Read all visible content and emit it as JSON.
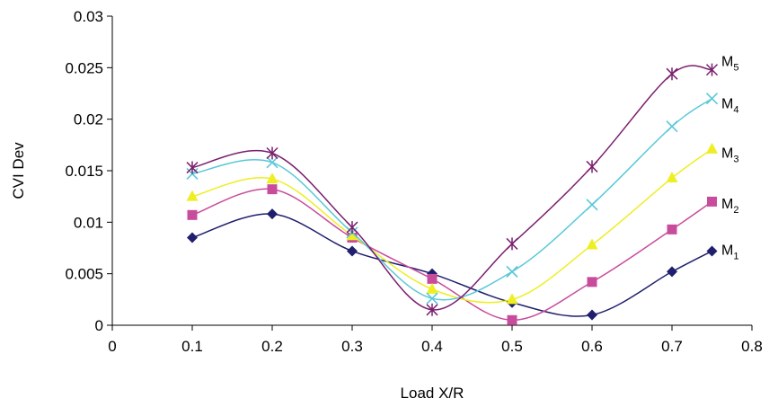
{
  "chart_data": {
    "type": "line",
    "title": "",
    "xlabel": "Load X/R",
    "ylabel": "CVI Dev",
    "xlim": [
      0,
      0.8
    ],
    "ylim": [
      0,
      0.03
    ],
    "x_ticks": [
      "0",
      "0.1",
      "0.2",
      "0.3",
      "0.4",
      "0.5",
      "0.6",
      "0.7",
      "0.8"
    ],
    "y_ticks": [
      "0",
      "0.005",
      "0.01",
      "0.015",
      "0.02",
      "0.025",
      "0.03"
    ],
    "grid": false,
    "legend": "inline labels at right end of each series",
    "x": [
      0.1,
      0.2,
      0.3,
      0.4,
      0.5,
      0.6,
      0.7,
      0.75
    ],
    "series": [
      {
        "name": "M",
        "subscript": "1",
        "color": "#1f1f6e",
        "marker": "diamond",
        "values": [
          0.0085,
          0.0108,
          0.0072,
          0.005,
          0.0022,
          0.001,
          0.0052,
          0.0072
        ]
      },
      {
        "name": "M",
        "subscript": "2",
        "color": "#c84c9c",
        "marker": "square",
        "values": [
          0.0107,
          0.0132,
          0.0085,
          0.0045,
          0.0005,
          0.0042,
          0.0093,
          0.012
        ]
      },
      {
        "name": "M",
        "subscript": "3",
        "color": "#eeee22",
        "marker": "triangle",
        "values": [
          0.0125,
          0.0142,
          0.0087,
          0.0035,
          0.0025,
          0.0078,
          0.0143,
          0.0171
        ]
      },
      {
        "name": "M",
        "subscript": "4",
        "color": "#5ac8d8",
        "marker": "x",
        "values": [
          0.0147,
          0.0158,
          0.009,
          0.0026,
          0.0052,
          0.0117,
          0.0193,
          0.022
        ]
      },
      {
        "name": "M",
        "subscript": "5",
        "color": "#7a1f6e",
        "marker": "asterisk",
        "values": [
          0.0153,
          0.0167,
          0.0095,
          0.0015,
          0.0079,
          0.0154,
          0.0244,
          0.0248
        ]
      }
    ]
  }
}
